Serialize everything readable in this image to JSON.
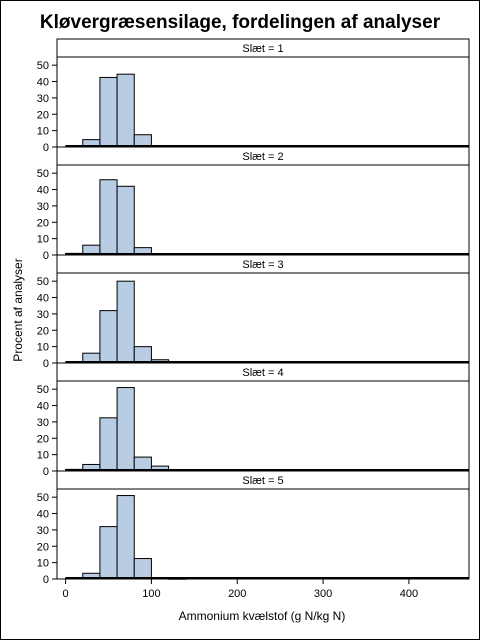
{
  "chart_data": {
    "type": "bar",
    "title": "Kløvergræsensilage, fordelingen af analyser",
    "xlabel": "Ammonium kvælstof (g N/kg N)",
    "ylabel": "Procent af analyser",
    "xlim": [
      -10,
      470
    ],
    "ylim": [
      0,
      55
    ],
    "xticks": [
      "0",
      "100",
      "200",
      "300",
      "400"
    ],
    "xtick_values": [
      0,
      100,
      200,
      300,
      400
    ],
    "yticks": [
      "0",
      "10",
      "20",
      "30",
      "40",
      "50"
    ],
    "ytick_values": [
      0,
      10,
      20,
      30,
      40,
      50
    ],
    "bin_width": 20,
    "bar_color": "#b8cce4",
    "panels": [
      {
        "label": "Slæt = 1",
        "bins": [
          0,
          20,
          40,
          60,
          80,
          100,
          120,
          140
        ],
        "values": [
          0.5,
          4.5,
          42.5,
          44.5,
          7.5,
          0.5,
          0.1,
          0.1
        ]
      },
      {
        "label": "Slæt = 2",
        "bins": [
          0,
          20,
          40,
          60,
          80,
          100,
          120,
          140
        ],
        "values": [
          1,
          6,
          46,
          42,
          4.5,
          0.3,
          0.1,
          0.1
        ]
      },
      {
        "label": "Slæt = 3",
        "bins": [
          0,
          20,
          40,
          60,
          80,
          100,
          120,
          140
        ],
        "values": [
          0.5,
          6,
          32,
          50,
          10,
          2,
          0.3,
          0.1
        ]
      },
      {
        "label": "Slæt = 4",
        "bins": [
          0,
          20,
          40,
          60,
          80,
          100,
          120,
          140
        ],
        "values": [
          1,
          4,
          32.5,
          51,
          8.5,
          3,
          0.5,
          0.1
        ]
      },
      {
        "label": "Slæt = 5",
        "bins": [
          0,
          20,
          40,
          60,
          80,
          100,
          120
        ],
        "values": [
          0.5,
          3.5,
          32,
          51,
          12.5,
          0.5,
          0.1
        ]
      }
    ]
  }
}
